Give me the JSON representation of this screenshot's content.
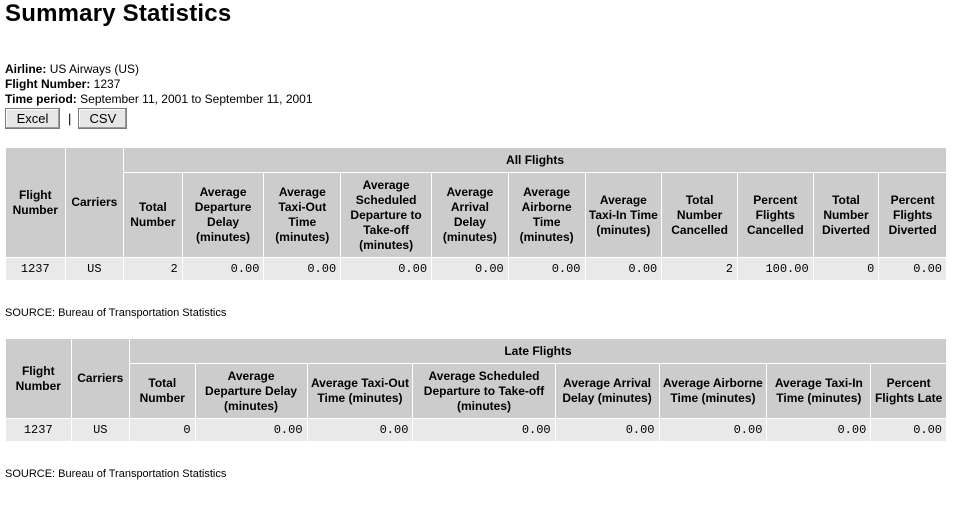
{
  "page_title": "Summary Statistics",
  "meta": {
    "airline_label": "Airline:",
    "airline_value": "US Airways (US)",
    "flight_label": "Flight Number:",
    "flight_value": "1237",
    "period_label": "Time period:",
    "period_value": "September 11, 2001 to September 11, 2001"
  },
  "buttons": {
    "excel": "Excel",
    "separator": "|",
    "csv": "CSV"
  },
  "all_flights": {
    "group_header": "All Flights",
    "col_flight_number": "Flight Number",
    "col_carriers": "Carriers",
    "columns": [
      "Total Number",
      "Average Departure Delay (minutes)",
      "Average Taxi-Out Time (minutes)",
      "Average Scheduled Departure to Take-off (minutes)",
      "Average Arrival Delay (minutes)",
      "Average Airborne Time (minutes)",
      "Average Taxi-In Time (minutes)",
      "Total Number Cancelled",
      "Percent Flights Cancelled",
      "Total Number Diverted",
      "Percent Flights Diverted"
    ],
    "row": {
      "flight_number": "1237",
      "carriers": "US",
      "values": [
        "2",
        "0.00",
        "0.00",
        "0.00",
        "0.00",
        "0.00",
        "0.00",
        "2",
        "100.00",
        "0",
        "0.00"
      ]
    },
    "source": "SOURCE: Bureau of Transportation Statistics"
  },
  "late_flights": {
    "group_header": "Late Flights",
    "col_flight_number": "Flight Number",
    "col_carriers": "Carriers",
    "columns": [
      "Total Number",
      "Average Departure Delay (minutes)",
      "Average Taxi-Out Time (minutes)",
      "Average Scheduled Departure to Take-off (minutes)",
      "Average Arrival Delay (minutes)",
      "Average Airborne Time (minutes)",
      "Average Taxi-In Time (minutes)",
      "Percent Flights Late"
    ],
    "row": {
      "flight_number": "1237",
      "carriers": "US",
      "values": [
        "0",
        "0.00",
        "0.00",
        "0.00",
        "0.00",
        "0.00",
        "0.00",
        "0.00"
      ]
    },
    "source": "SOURCE: Bureau of Transportation Statistics"
  }
}
